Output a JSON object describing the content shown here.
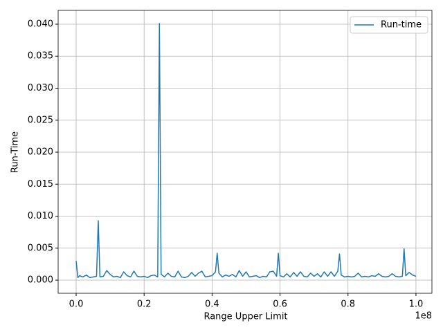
{
  "chart_data": {
    "type": "line",
    "x_label": "Range Upper Limit",
    "y_label": "Run-Time",
    "x_offset_label": "1e8",
    "x": [
      0,
      0.005,
      0.01,
      0.02,
      0.03,
      0.04,
      0.05,
      0.06,
      0.065,
      0.07,
      0.08,
      0.09,
      0.1,
      0.11,
      0.12,
      0.13,
      0.14,
      0.15,
      0.16,
      0.17,
      0.18,
      0.19,
      0.2,
      0.21,
      0.22,
      0.23,
      0.24,
      0.245,
      0.25,
      0.26,
      0.27,
      0.28,
      0.29,
      0.3,
      0.31,
      0.32,
      0.33,
      0.34,
      0.35,
      0.36,
      0.37,
      0.38,
      0.39,
      0.4,
      0.41,
      0.415,
      0.42,
      0.43,
      0.44,
      0.45,
      0.46,
      0.47,
      0.48,
      0.49,
      0.5,
      0.51,
      0.52,
      0.53,
      0.54,
      0.55,
      0.56,
      0.57,
      0.58,
      0.59,
      0.595,
      0.6,
      0.61,
      0.62,
      0.63,
      0.64,
      0.65,
      0.66,
      0.67,
      0.68,
      0.69,
      0.7,
      0.71,
      0.72,
      0.73,
      0.74,
      0.75,
      0.76,
      0.77,
      0.775,
      0.78,
      0.79,
      0.8,
      0.81,
      0.82,
      0.83,
      0.84,
      0.85,
      0.86,
      0.87,
      0.88,
      0.89,
      0.9,
      0.91,
      0.92,
      0.93,
      0.94,
      0.95,
      0.96,
      0.965,
      0.97,
      0.98,
      0.99,
      1.0
    ],
    "series": [
      {
        "name": "Run-time",
        "color": "#1f77b4",
        "values": [
          0.003,
          0.0004,
          0.0007,
          0.0005,
          0.0008,
          0.0004,
          0.0005,
          0.0006,
          0.0093,
          0.0005,
          0.0006,
          0.0015,
          0.0009,
          0.0005,
          0.0006,
          0.0004,
          0.0013,
          0.0007,
          0.0005,
          0.0014,
          0.0006,
          0.0005,
          0.0006,
          0.0004,
          0.0007,
          0.0008,
          0.0005,
          0.0401,
          0.0009,
          0.0005,
          0.0011,
          0.0006,
          0.0005,
          0.0014,
          0.0005,
          0.0004,
          0.0006,
          0.0012,
          0.0006,
          0.0011,
          0.0014,
          0.0005,
          0.0006,
          0.0007,
          0.0013,
          0.0042,
          0.0011,
          0.0005,
          0.0008,
          0.0006,
          0.0009,
          0.0005,
          0.0015,
          0.0006,
          0.0013,
          0.0005,
          0.0006,
          0.0007,
          0.0004,
          0.0006,
          0.0005,
          0.0013,
          0.0014,
          0.0006,
          0.0042,
          0.0007,
          0.0005,
          0.001,
          0.0005,
          0.0012,
          0.0006,
          0.0013,
          0.0006,
          0.0005,
          0.0011,
          0.0006,
          0.001,
          0.0005,
          0.0013,
          0.0006,
          0.0013,
          0.0006,
          0.0014,
          0.0041,
          0.0008,
          0.0005,
          0.0006,
          0.0005,
          0.0006,
          0.0011,
          0.0005,
          0.0006,
          0.0005,
          0.0007,
          0.0006,
          0.001,
          0.0006,
          0.0005,
          0.0006,
          0.001,
          0.0006,
          0.0005,
          0.0006,
          0.0049,
          0.0007,
          0.0012,
          0.0008,
          0.0006
        ]
      }
    ],
    "xlim": [
      -0.053,
      1.047
    ],
    "ylim": [
      -0.00205,
      0.04216
    ],
    "xticks": [
      {
        "value": 0,
        "label": "0.0"
      },
      0.2,
      0.4,
      0.6,
      0.8,
      {
        "value": 1,
        "label": "1.0"
      }
    ],
    "yticks": [
      {
        "value": 0,
        "label": "0.000"
      },
      0.005,
      {
        "value": 0.01,
        "label": "0.010"
      },
      0.015,
      {
        "value": 0.02,
        "label": "0.020"
      },
      0.025,
      {
        "value": 0.03,
        "label": "0.030"
      },
      0.035,
      {
        "value": 0.04,
        "label": "0.040"
      }
    ],
    "grid": true,
    "legend": "upper right"
  }
}
